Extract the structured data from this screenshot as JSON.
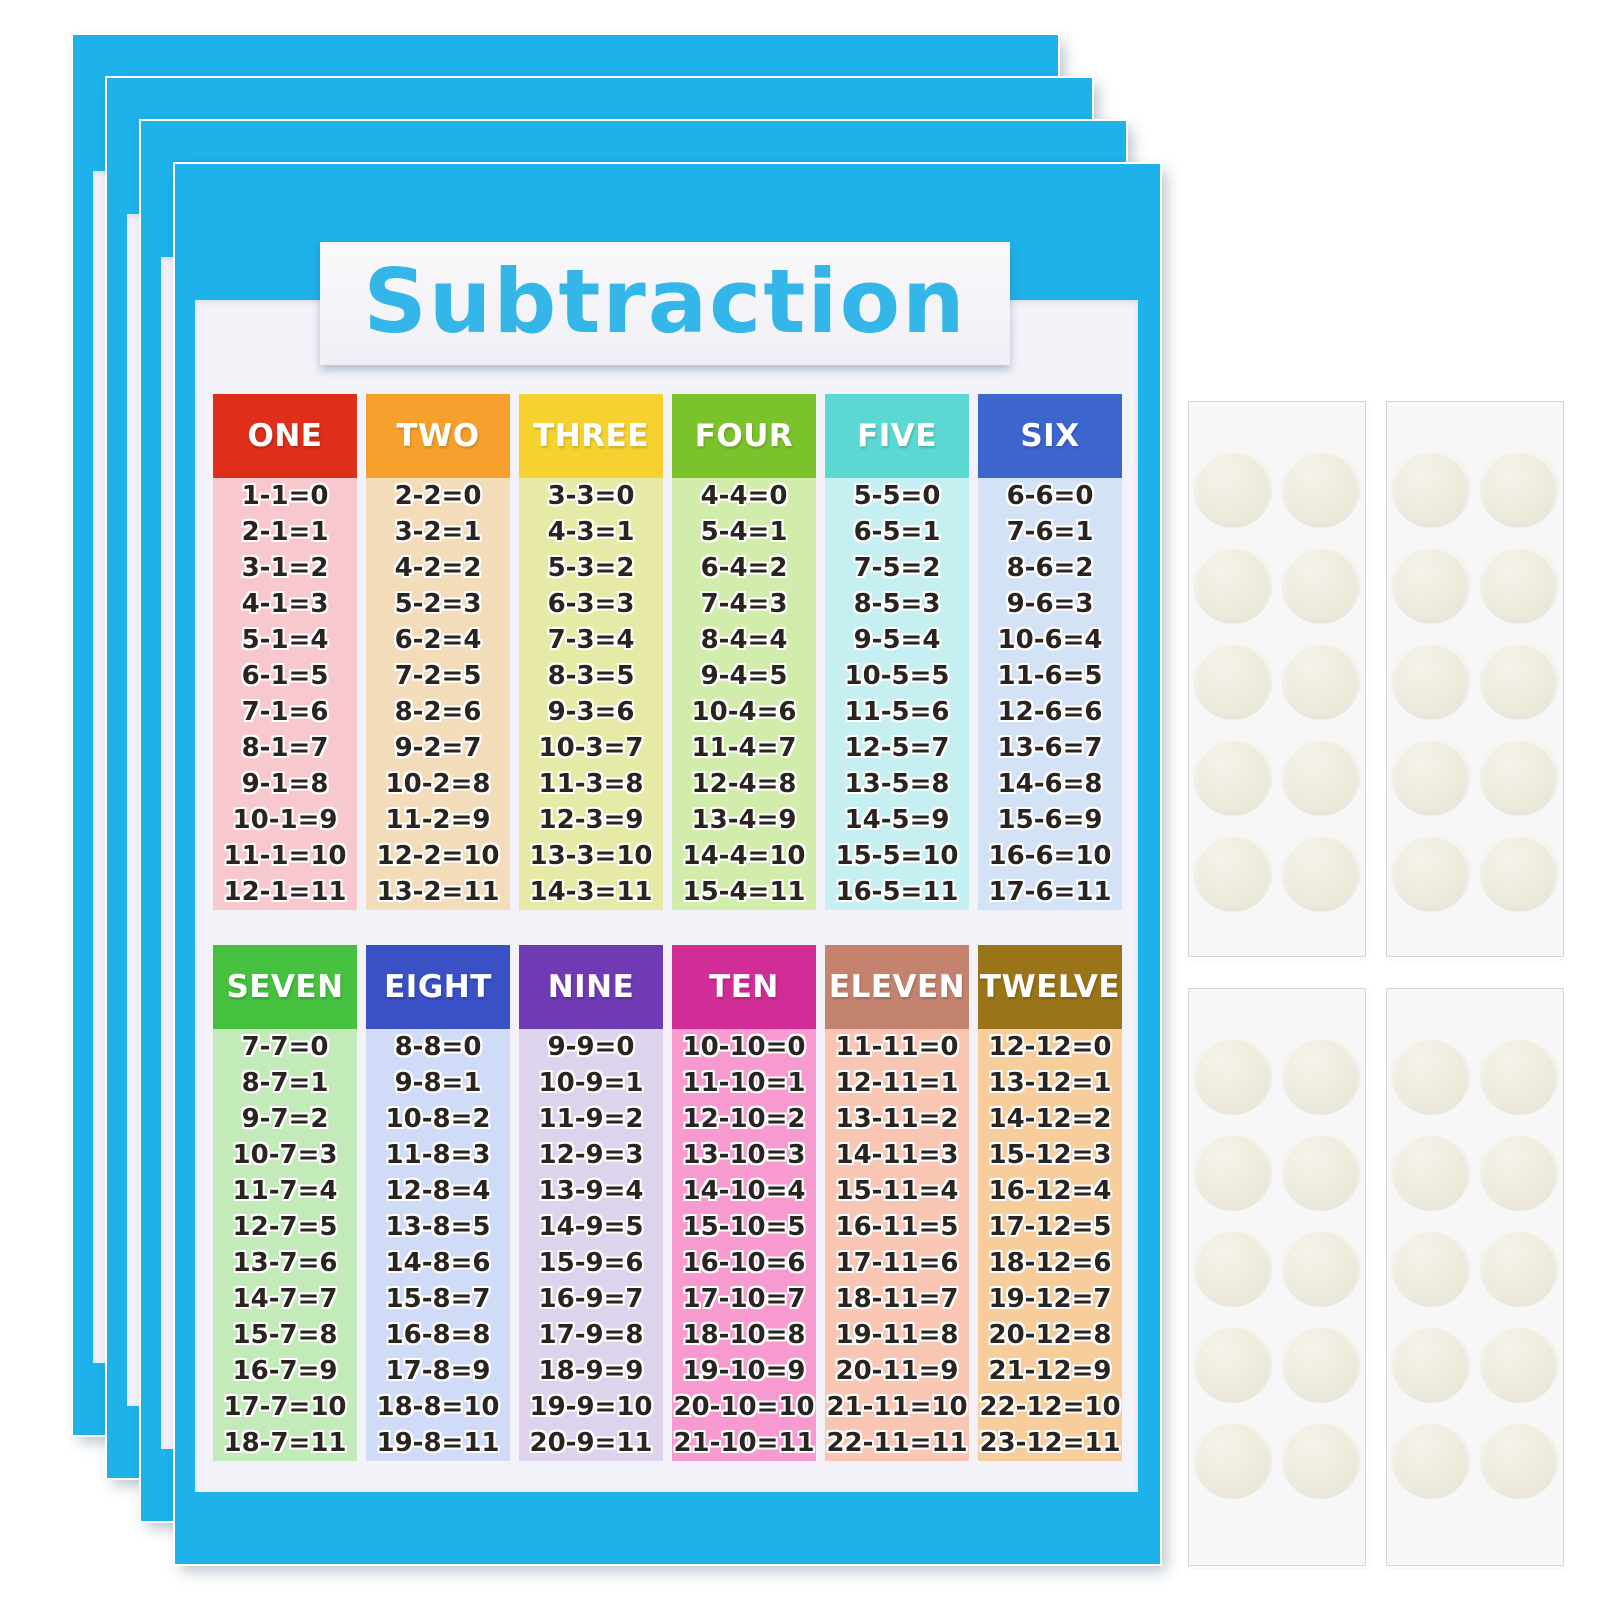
{
  "poster": {
    "title": "Subtraction",
    "sheet_count": 4,
    "colors": {
      "sheet_blue": "#1fb1e9",
      "title_text": "#35b6e9",
      "title_band_bg": "#f5f5f9",
      "content_bg": "#f3f2f8",
      "equation_text": "#2a2420",
      "header_text": "#ffffff"
    },
    "blocks": [
      {
        "columns": [
          {
            "name": "ONE",
            "header_color": "#df2e1a",
            "body_color": "#f8c8cf",
            "equations": [
              "1-1=0",
              "2-1=1",
              "3-1=2",
              "4-1=3",
              "5-1=4",
              "6-1=5",
              "7-1=6",
              "8-1=7",
              "9-1=8",
              "10-1=9",
              "11-1=10",
              "12-1=11"
            ]
          },
          {
            "name": "TWO",
            "header_color": "#f7a02e",
            "body_color": "#f3dcba",
            "equations": [
              "2-2=0",
              "3-2=1",
              "4-2=2",
              "5-2=3",
              "6-2=4",
              "7-2=5",
              "8-2=6",
              "9-2=7",
              "10-2=8",
              "11-2=9",
              "12-2=10",
              "13-2=11"
            ]
          },
          {
            "name": "THREE",
            "header_color": "#f5d22f",
            "body_color": "#e6eaa6",
            "equations": [
              "3-3=0",
              "4-3=1",
              "5-3=2",
              "6-3=3",
              "7-3=4",
              "8-3=5",
              "9-3=6",
              "10-3=7",
              "11-3=8",
              "12-3=9",
              "13-3=10",
              "14-3=11"
            ]
          },
          {
            "name": "FOUR",
            "header_color": "#7cc22d",
            "body_color": "#d2ecab",
            "equations": [
              "4-4=0",
              "5-4=1",
              "6-4=2",
              "7-4=3",
              "8-4=4",
              "9-4=5",
              "10-4=6",
              "11-4=7",
              "12-4=8",
              "13-4=9",
              "14-4=10",
              "15-4=11"
            ]
          },
          {
            "name": "FIVE",
            "header_color": "#5cd8d2",
            "body_color": "#c5eff0",
            "equations": [
              "5-5=0",
              "6-5=1",
              "7-5=2",
              "8-5=3",
              "9-5=4",
              "10-5=5",
              "11-5=6",
              "12-5=7",
              "13-5=8",
              "14-5=9",
              "15-5=10",
              "16-5=11"
            ]
          },
          {
            "name": "SIX",
            "header_color": "#3c66ce",
            "body_color": "#d3e2f5",
            "equations": [
              "6-6=0",
              "7-6=1",
              "8-6=2",
              "9-6=3",
              "10-6=4",
              "11-6=5",
              "12-6=6",
              "13-6=7",
              "14-6=8",
              "15-6=9",
              "16-6=10",
              "17-6=11"
            ]
          }
        ]
      },
      {
        "columns": [
          {
            "name": "SEVEN",
            "header_color": "#46c13f",
            "body_color": "#c3ebba",
            "equations": [
              "7-7=0",
              "8-7=1",
              "9-7=2",
              "10-7=3",
              "11-7=4",
              "12-7=5",
              "13-7=6",
              "14-7=7",
              "15-7=8",
              "16-7=9",
              "17-7=10",
              "18-7=11"
            ]
          },
          {
            "name": "EIGHT",
            "header_color": "#3a50c5",
            "body_color": "#d0dbf7",
            "equations": [
              "8-8=0",
              "9-8=1",
              "10-8=2",
              "11-8=3",
              "12-8=4",
              "13-8=5",
              "14-8=6",
              "15-8=7",
              "16-8=8",
              "17-8=9",
              "18-8=10",
              "19-8=11"
            ]
          },
          {
            "name": "NINE",
            "header_color": "#6f3ab4",
            "body_color": "#ddd3ec",
            "equations": [
              "9-9=0",
              "10-9=1",
              "11-9=2",
              "12-9=3",
              "13-9=4",
              "14-9=5",
              "15-9=6",
              "16-9=7",
              "17-9=8",
              "18-9=9",
              "19-9=10",
              "20-9=11"
            ]
          },
          {
            "name": "TEN",
            "header_color": "#d02d96",
            "body_color": "#f79ad0",
            "equations": [
              "10-10=0",
              "11-10=1",
              "12-10=2",
              "13-10=3",
              "14-10=4",
              "15-10=5",
              "16-10=6",
              "17-10=7",
              "18-10=8",
              "19-10=9",
              "20-10=10",
              "21-10=11"
            ]
          },
          {
            "name": "ELEVEN",
            "header_color": "#c3836f",
            "body_color": "#f8c6b3",
            "equations": [
              "11-11=0",
              "12-11=1",
              "13-11=2",
              "14-11=3",
              "15-11=4",
              "16-11=5",
              "17-11=6",
              "18-11=7",
              "19-11=8",
              "20-11=9",
              "21-11=10",
              "22-11=11"
            ]
          },
          {
            "name": "TWELVE",
            "header_color": "#9a7419",
            "body_color": "#f6cd9b",
            "equations": [
              "12-12=0",
              "13-12=1",
              "14-12=2",
              "15-12=3",
              "16-12=4",
              "17-12=5",
              "18-12=6",
              "19-12=7",
              "20-12=8",
              "21-12=9",
              "22-12=10",
              "23-12=11"
            ]
          }
        ]
      }
    ]
  },
  "sticker_sheets": {
    "count": 4,
    "dots_per_sheet": 10,
    "dot_rows": 5,
    "dot_columns": 2,
    "sheet_bg": "#f7f7f7",
    "dot_color": "#eeebdd"
  }
}
